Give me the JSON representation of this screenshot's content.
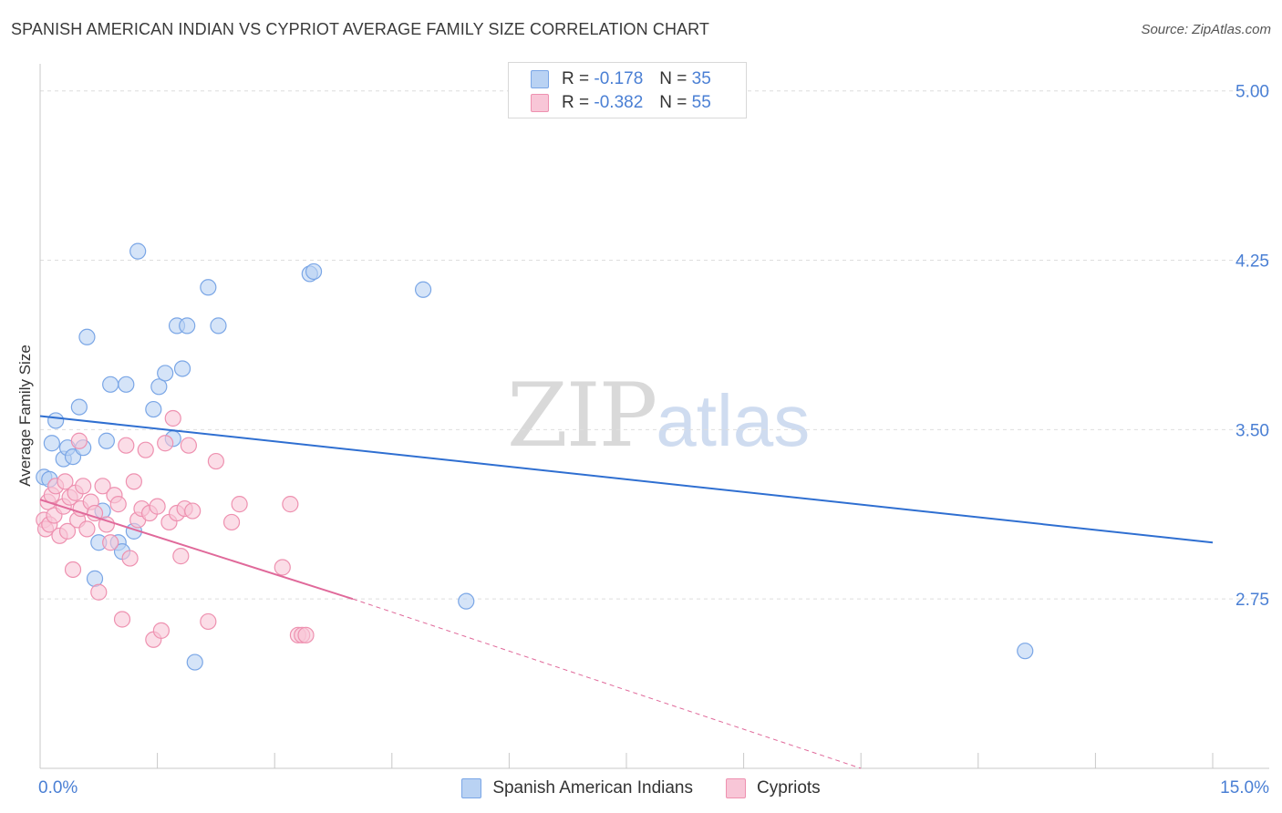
{
  "header": {
    "title": "SPANISH AMERICAN INDIAN VS CYPRIOT AVERAGE FAMILY SIZE CORRELATION CHART",
    "source": "Source: ZipAtlas.com"
  },
  "watermark": {
    "zip": "ZIP",
    "atlas": "atlas"
  },
  "legend_top": [
    {
      "r_label": "R =",
      "r_value": "-0.178",
      "n_label": "N =",
      "n_value": "35"
    },
    {
      "r_label": "R =",
      "r_value": "-0.382",
      "n_label": "N =",
      "n_value": "55"
    }
  ],
  "legend_bottom": [
    {
      "label": "Spanish American Indians"
    },
    {
      "label": "Cypriots"
    }
  ],
  "colors": {
    "blue_fill": "#b9d2f3",
    "blue_stroke": "#7aa6e6",
    "blue_line": "#2f6fd1",
    "pink_fill": "#f8c6d7",
    "pink_stroke": "#ee91b0",
    "pink_line": "#e0699a",
    "tick_label": "#4a7fd4",
    "grid": "#dedede"
  },
  "chart_data": {
    "type": "scatter",
    "title": "SPANISH AMERICAN INDIAN VS CYPRIOT AVERAGE FAMILY SIZE CORRELATION CHART",
    "xlabel": "",
    "ylabel": "Average Family Size",
    "xlim": [
      0,
      15
    ],
    "ylim": [
      2.0,
      5.12
    ],
    "x_tick_labels": [
      {
        "value": 0,
        "label": "0.0%"
      },
      {
        "value": 15,
        "label": "15.0%"
      }
    ],
    "x_minor_ticks": [
      1.5,
      3,
      4.5,
      6,
      7.5,
      9,
      10.5,
      12,
      13.5,
      15
    ],
    "y_ticks": [
      {
        "value": 2.75,
        "label": "2.75"
      },
      {
        "value": 3.5,
        "label": "3.50"
      },
      {
        "value": 4.25,
        "label": "4.25"
      },
      {
        "value": 5.0,
        "label": "5.00"
      }
    ],
    "grid": true,
    "legend_position": "top-center",
    "series": [
      {
        "name": "Spanish American Indians",
        "points": [
          [
            0.05,
            3.29
          ],
          [
            0.12,
            3.28
          ],
          [
            0.15,
            3.44
          ],
          [
            0.2,
            3.54
          ],
          [
            0.3,
            3.37
          ],
          [
            0.35,
            3.42
          ],
          [
            0.42,
            3.38
          ],
          [
            0.5,
            3.6
          ],
          [
            0.55,
            3.42
          ],
          [
            0.6,
            3.91
          ],
          [
            0.7,
            2.84
          ],
          [
            0.75,
            3.0
          ],
          [
            0.8,
            3.14
          ],
          [
            0.85,
            3.45
          ],
          [
            0.9,
            3.7
          ],
          [
            1.0,
            3.0
          ],
          [
            1.05,
            2.96
          ],
          [
            1.1,
            3.7
          ],
          [
            1.2,
            3.05
          ],
          [
            1.25,
            4.29
          ],
          [
            1.45,
            3.59
          ],
          [
            1.52,
            3.69
          ],
          [
            1.6,
            3.75
          ],
          [
            1.7,
            3.46
          ],
          [
            1.75,
            3.96
          ],
          [
            1.82,
            3.77
          ],
          [
            1.88,
            3.96
          ],
          [
            1.98,
            2.47
          ],
          [
            2.15,
            4.13
          ],
          [
            2.28,
            3.96
          ],
          [
            3.45,
            4.19
          ],
          [
            3.5,
            4.2
          ],
          [
            4.9,
            4.12
          ],
          [
            5.45,
            2.74
          ],
          [
            12.6,
            2.52
          ]
        ],
        "trend": {
          "x": [
            0,
            15
          ],
          "y": [
            3.56,
            3.0
          ]
        }
      },
      {
        "name": "Cypriots",
        "points": [
          [
            0.05,
            3.1
          ],
          [
            0.07,
            3.06
          ],
          [
            0.1,
            3.18
          ],
          [
            0.12,
            3.08
          ],
          [
            0.15,
            3.21
          ],
          [
            0.18,
            3.12
          ],
          [
            0.2,
            3.25
          ],
          [
            0.25,
            3.03
          ],
          [
            0.3,
            3.16
          ],
          [
            0.32,
            3.27
          ],
          [
            0.35,
            3.05
          ],
          [
            0.38,
            3.2
          ],
          [
            0.42,
            2.88
          ],
          [
            0.45,
            3.22
          ],
          [
            0.48,
            3.1
          ],
          [
            0.5,
            3.45
          ],
          [
            0.52,
            3.15
          ],
          [
            0.55,
            3.25
          ],
          [
            0.6,
            3.06
          ],
          [
            0.65,
            3.18
          ],
          [
            0.7,
            3.13
          ],
          [
            0.75,
            2.78
          ],
          [
            0.8,
            3.25
          ],
          [
            0.85,
            3.08
          ],
          [
            0.9,
            3.0
          ],
          [
            0.95,
            3.21
          ],
          [
            1.0,
            3.17
          ],
          [
            1.05,
            2.66
          ],
          [
            1.1,
            3.43
          ],
          [
            1.15,
            2.93
          ],
          [
            1.2,
            3.27
          ],
          [
            1.25,
            3.1
          ],
          [
            1.3,
            3.15
          ],
          [
            1.35,
            3.41
          ],
          [
            1.4,
            3.13
          ],
          [
            1.45,
            2.57
          ],
          [
            1.5,
            3.16
          ],
          [
            1.55,
            2.61
          ],
          [
            1.6,
            3.44
          ],
          [
            1.65,
            3.09
          ],
          [
            1.7,
            3.55
          ],
          [
            1.75,
            3.13
          ],
          [
            1.8,
            2.94
          ],
          [
            1.85,
            3.15
          ],
          [
            1.9,
            3.43
          ],
          [
            1.95,
            3.14
          ],
          [
            2.15,
            2.65
          ],
          [
            2.25,
            3.36
          ],
          [
            2.45,
            3.09
          ],
          [
            2.55,
            3.17
          ],
          [
            3.1,
            2.89
          ],
          [
            3.2,
            3.17
          ],
          [
            3.3,
            2.59
          ],
          [
            3.35,
            2.59
          ],
          [
            3.4,
            2.59
          ]
        ],
        "trend": {
          "x": [
            0,
            4.0
          ],
          "y": [
            3.19,
            2.75
          ]
        },
        "trend_extension": {
          "x": [
            4.0,
            10.5
          ],
          "y": [
            2.75,
            2.0
          ]
        }
      }
    ]
  }
}
